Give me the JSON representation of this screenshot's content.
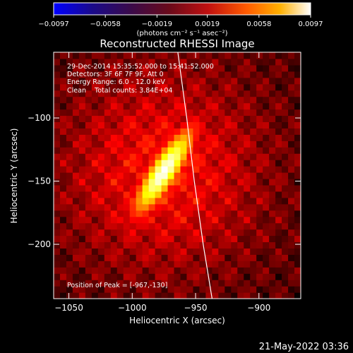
{
  "chart_data": {
    "type": "heatmap",
    "title": "Reconstructed RHESSI Image",
    "xlabel": "Heliocentric X (arcsec)",
    "ylabel": "Heliocentric Y (arcsec)",
    "xlim": [
      -1062,
      -867
    ],
    "ylim": [
      -243,
      -48
    ],
    "x_ticks": [
      {
        "value": -1050,
        "label": "−1050"
      },
      {
        "value": -1000,
        "label": "−1000"
      },
      {
        "value": -950,
        "label": "−950"
      },
      {
        "value": -900,
        "label": "−900"
      }
    ],
    "y_ticks": [
      {
        "value": -100,
        "label": "−100"
      },
      {
        "value": -150,
        "label": "−150"
      },
      {
        "value": -200,
        "label": "−200"
      }
    ],
    "annotations": [
      "29-Dec-2014 15:35:52.000 to 15:41:52.000",
      "Detectors: 3F 6F 7F 9F, Att 0",
      "Energy Range: 6.0 - 12.0 keV",
      "Clean    Total counts: 3.84E+04"
    ],
    "peak_label": "Position of Peak = [-967,-130]",
    "peak": {
      "x": -967,
      "y": -130
    },
    "source": {
      "x_center": -975,
      "y_center": -142,
      "length_arcsec": 75,
      "width_arcsec": 18,
      "tilt_deg": 33
    },
    "limb_curve": [
      [
        -964,
        -48
      ],
      [
        -957,
        -100
      ],
      [
        -951,
        -150
      ],
      [
        -944,
        -200
      ],
      [
        -937,
        -243
      ]
    ],
    "colorbar": {
      "range": [
        -0.0097,
        0.0097
      ],
      "colormap": "hot",
      "ticks": [
        {
          "value": -0.0097,
          "label": "−0.0097"
        },
        {
          "value": -0.0058,
          "label": "−0.0058"
        },
        {
          "value": -0.0019,
          "label": "−0.0019"
        },
        {
          "value": 0.0019,
          "label": "0.0019"
        },
        {
          "value": 0.0058,
          "label": "0.0058"
        },
        {
          "value": 0.0097,
          "label": "0.0097"
        }
      ],
      "units": "(photons cm⁻² s⁻¹ asec⁻²)"
    },
    "footer_timestamp": "21-May-2022 03:36"
  }
}
